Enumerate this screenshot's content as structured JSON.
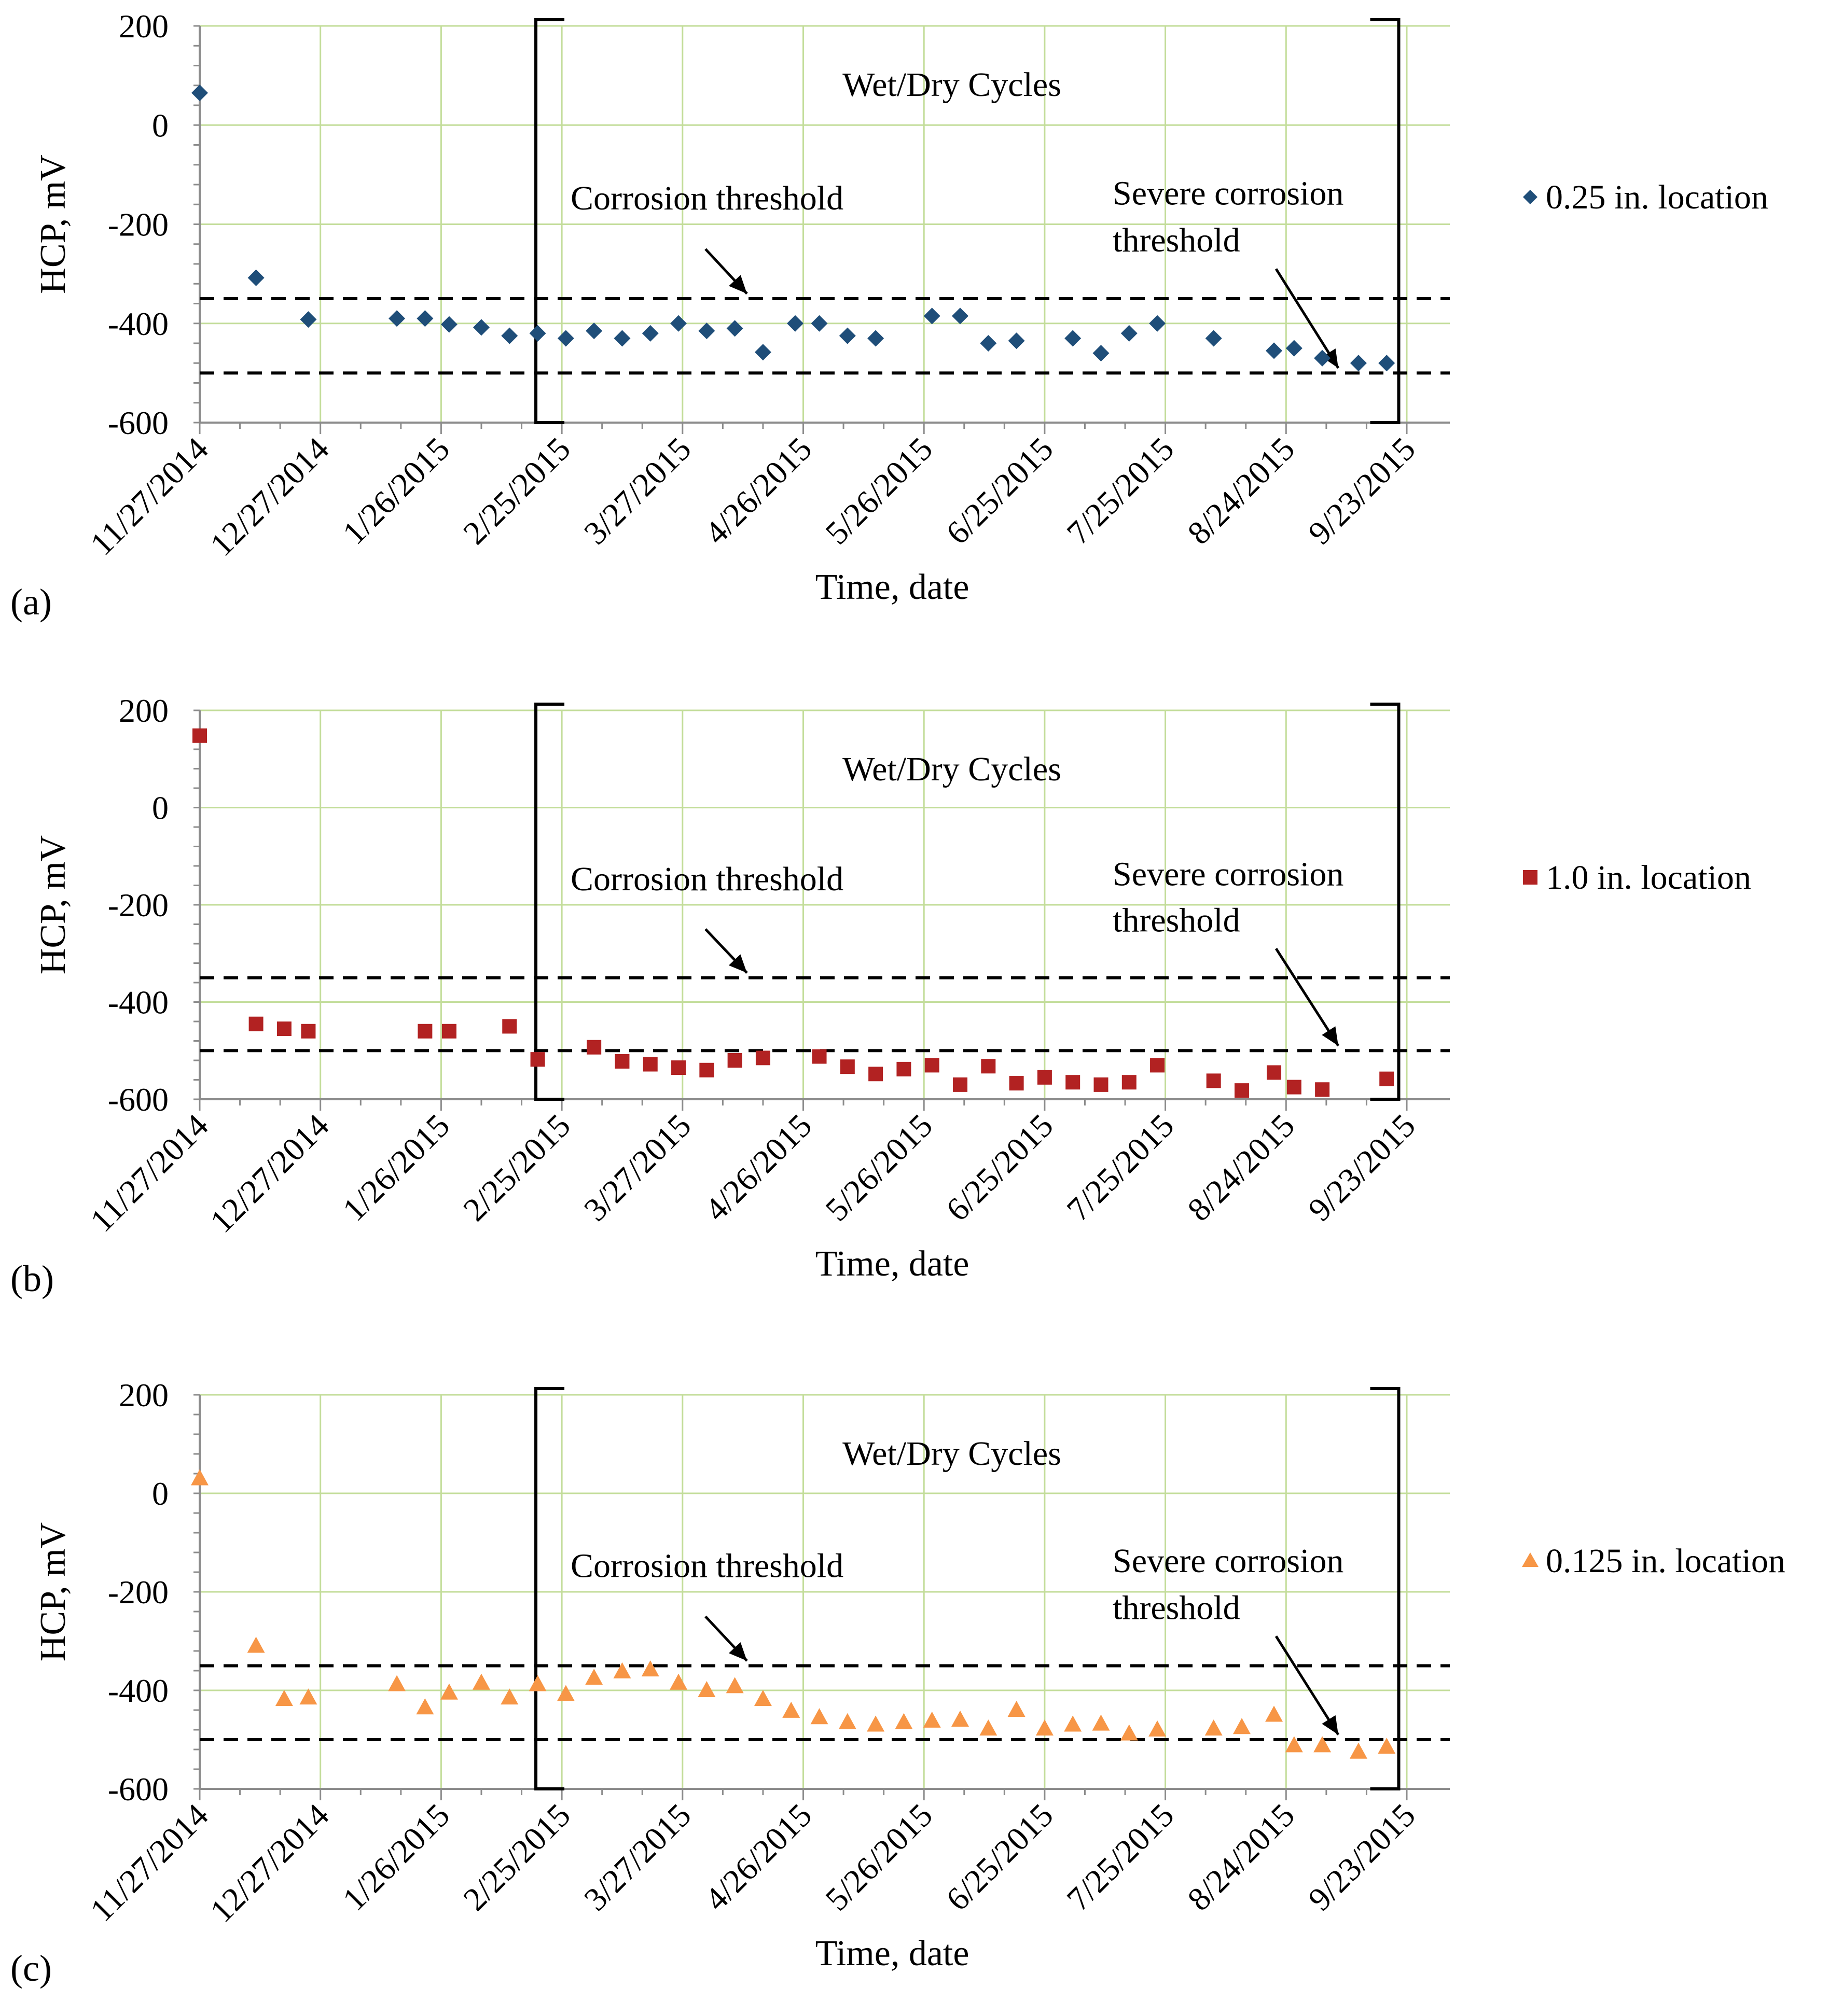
{
  "figure_labels": {
    "axis_x": "Time, date",
    "axis_y": "HCP, mV",
    "wet_dry": "Wet/Dry Cycles",
    "corrosion_threshold": "Corrosion threshold",
    "severe_line1": "Severe corrosion",
    "severe_line2": "threshold"
  },
  "chart_data": [
    {
      "type": "scatter",
      "panel_label": "(a)",
      "xlabel": "Time, date",
      "ylabel": "HCP, mV",
      "x_ticks": [
        "11/27/2014",
        "12/27/2014",
        "1/26/2015",
        "2/25/2015",
        "3/27/2015",
        "4/26/2015",
        "5/26/2015",
        "6/25/2015",
        "7/25/2015",
        "8/24/2015",
        "9/23/2015"
      ],
      "x_range_days": [
        0,
        300
      ],
      "ylim": [
        -600,
        200
      ],
      "y_ticks": [
        200,
        0,
        -200,
        -400,
        -600
      ],
      "grid": true,
      "thresholds": [
        -350,
        -500
      ],
      "wet_dry_days": [
        82,
        298
      ],
      "annotations": [
        "Wet/Dry Cycles",
        "Corrosion threshold",
        "Severe corrosion threshold"
      ],
      "series": [
        {
          "name": "0.25 in. location",
          "marker": "diamond",
          "color": "#1F4E79",
          "days": [
            0,
            14,
            27,
            49,
            56,
            62,
            70,
            77,
            84,
            91,
            98,
            105,
            112,
            119,
            126,
            133,
            140,
            148,
            154,
            161,
            168,
            182,
            189,
            196,
            203,
            217,
            224,
            231,
            238,
            252,
            267,
            272,
            279,
            288,
            295
          ],
          "values": [
            65,
            -308,
            -392,
            -390,
            -390,
            -402,
            -408,
            -425,
            -420,
            -430,
            -415,
            -430,
            -420,
            -400,
            -415,
            -410,
            -458,
            -400,
            -400,
            -425,
            -430,
            -385,
            -385,
            -440,
            -435,
            -430,
            -460,
            -420,
            -400,
            -430,
            -455,
            -450,
            -470,
            -480,
            -480
          ]
        }
      ]
    },
    {
      "type": "scatter",
      "panel_label": "(b)",
      "xlabel": "Time, date",
      "ylabel": "HCP, mV",
      "x_ticks": [
        "11/27/2014",
        "12/27/2014",
        "1/26/2015",
        "2/25/2015",
        "3/27/2015",
        "4/26/2015",
        "5/26/2015",
        "6/25/2015",
        "7/25/2015",
        "8/24/2015",
        "9/23/2015"
      ],
      "x_range_days": [
        0,
        300
      ],
      "ylim": [
        -600,
        200
      ],
      "y_ticks": [
        200,
        0,
        -200,
        -400,
        -600
      ],
      "grid": true,
      "thresholds": [
        -350,
        -500
      ],
      "wet_dry_days": [
        82,
        298
      ],
      "annotations": [
        "Wet/Dry Cycles",
        "Corrosion threshold",
        "Severe corrosion threshold"
      ],
      "series": [
        {
          "name": "1.0 in. location",
          "marker": "square",
          "color": "#B22222",
          "days": [
            0,
            14,
            21,
            27,
            56,
            62,
            77,
            84,
            98,
            105,
            112,
            119,
            126,
            133,
            140,
            154,
            161,
            168,
            175,
            182,
            189,
            196,
            203,
            210,
            217,
            224,
            231,
            238,
            252,
            259,
            267,
            272,
            279,
            295
          ],
          "values": [
            148,
            -445,
            -455,
            -460,
            -460,
            -460,
            -450,
            -518,
            -493,
            -522,
            -528,
            -535,
            -540,
            -520,
            -515,
            -512,
            -533,
            -548,
            -538,
            -530,
            -570,
            -532,
            -567,
            -555,
            -565,
            -570,
            -565,
            -530,
            -562,
            -582,
            -545,
            -575,
            -580,
            -558
          ]
        }
      ]
    },
    {
      "type": "scatter",
      "panel_label": "(c)",
      "xlabel": "Time, date",
      "ylabel": "HCP, mV",
      "x_ticks": [
        "11/27/2014",
        "12/27/2014",
        "1/26/2015",
        "2/25/2015",
        "3/27/2015",
        "4/26/2015",
        "5/26/2015",
        "6/25/2015",
        "7/25/2015",
        "8/24/2015",
        "9/23/2015"
      ],
      "x_range_days": [
        0,
        300
      ],
      "ylim": [
        -600,
        200
      ],
      "y_ticks": [
        200,
        0,
        -200,
        -400,
        -600
      ],
      "grid": true,
      "thresholds": [
        -350,
        -500
      ],
      "wet_dry_days": [
        82,
        298
      ],
      "annotations": [
        "Wet/Dry Cycles",
        "Corrosion threshold",
        "Severe corrosion threshold"
      ],
      "series": [
        {
          "name": "0.125 in. location",
          "marker": "triangle",
          "color": "#F79646",
          "days": [
            0,
            14,
            21,
            27,
            49,
            56,
            62,
            70,
            77,
            84,
            91,
            98,
            105,
            112,
            119,
            126,
            133,
            140,
            147,
            154,
            161,
            168,
            175,
            182,
            189,
            196,
            203,
            210,
            217,
            224,
            231,
            238,
            252,
            259,
            267,
            272,
            279,
            288,
            295
          ],
          "values": [
            30,
            -310,
            -418,
            -415,
            -388,
            -435,
            -405,
            -385,
            -415,
            -388,
            -408,
            -375,
            -362,
            -358,
            -385,
            -400,
            -392,
            -418,
            -442,
            -455,
            -465,
            -470,
            -465,
            -462,
            -460,
            -478,
            -440,
            -478,
            -470,
            -468,
            -488,
            -480,
            -478,
            -475,
            -450,
            -512,
            -512,
            -525,
            -515
          ]
        }
      ]
    }
  ]
}
